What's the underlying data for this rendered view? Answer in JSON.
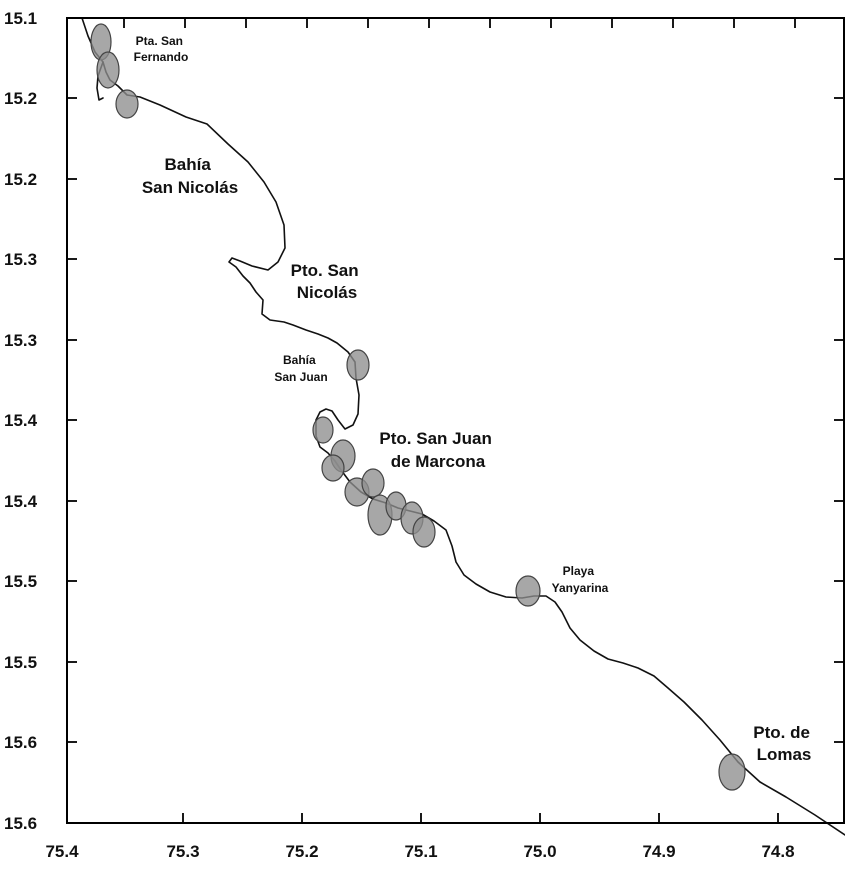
{
  "map": {
    "type": "coastline-map",
    "x_tick_labels": [
      "75.4",
      "75.3",
      "75.2",
      "75.1",
      "75.0",
      "74.9",
      "74.8"
    ],
    "y_tick_labels": [
      "15.1",
      "15.2",
      "15.2",
      "15.3",
      "15.3",
      "15.4",
      "15.4",
      "15.5",
      "15.5",
      "15.6",
      "15.6"
    ],
    "places": [
      {
        "id": "pta-san-fernando",
        "lines": [
          "Pta. San",
          "Fernando"
        ],
        "size": "s"
      },
      {
        "id": "bahia-san-nicolas",
        "lines": [
          "Bahía",
          "San Nicolás"
        ],
        "size": "l"
      },
      {
        "id": "pto-san-nicolas",
        "lines": [
          "Pto. San",
          "Nicolás"
        ],
        "size": "l"
      },
      {
        "id": "bahia-san-juan",
        "lines": [
          "Bahía",
          "San Juan"
        ],
        "size": "s"
      },
      {
        "id": "pto-san-juan-de-marcona",
        "lines": [
          "Pto. San Juan",
          "de Marcona"
        ],
        "size": "l"
      },
      {
        "id": "playa-yanyarina",
        "lines": [
          "Playa",
          "Yanyarina"
        ],
        "size": "s"
      },
      {
        "id": "pto-de-lomas",
        "lines": [
          "Pto. de",
          "Lomas"
        ],
        "size": "l"
      }
    ],
    "colors": {
      "coastline": "#111111",
      "zone_fill": "#8e8e8e",
      "frame": "#000000"
    }
  }
}
